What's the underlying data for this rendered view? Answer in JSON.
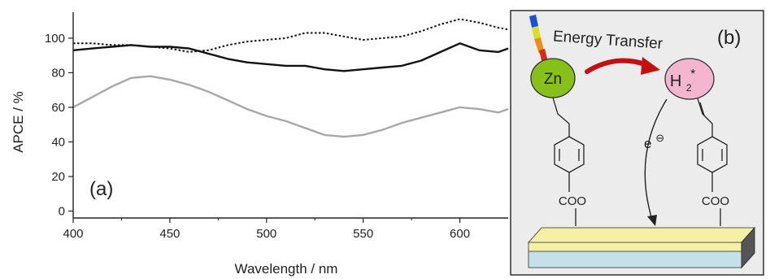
{
  "chart_data": {
    "type": "line",
    "panel_label": "(a)",
    "xlabel": "Wavelength / nm",
    "ylabel": "APCE / %",
    "xlim": [
      400,
      625
    ],
    "ylim": [
      -4,
      115
    ],
    "xticks": [
      400,
      450,
      500,
      550,
      600
    ],
    "yticks": [
      0,
      20,
      40,
      60,
      80,
      100
    ],
    "grid": false,
    "series": [
      {
        "style": "dotted",
        "color": "#111111",
        "x": [
          400,
          410,
          420,
          430,
          440,
          450,
          460,
          470,
          480,
          490,
          500,
          510,
          520,
          530,
          540,
          550,
          560,
          570,
          580,
          590,
          600,
          610,
          620,
          625
        ],
        "y": [
          97,
          97,
          96,
          96,
          95,
          94,
          92,
          93,
          96,
          98,
          99,
          100,
          103,
          103,
          101,
          99,
          100,
          101,
          104,
          108,
          111,
          109,
          106,
          105
        ]
      },
      {
        "style": "solid",
        "color": "#111111",
        "x": [
          400,
          410,
          420,
          430,
          440,
          450,
          460,
          470,
          480,
          490,
          500,
          510,
          520,
          530,
          540,
          550,
          560,
          570,
          580,
          590,
          600,
          610,
          620,
          625
        ],
        "y": [
          93,
          94,
          95,
          96,
          95,
          95,
          94,
          91,
          88,
          86,
          85,
          84,
          84,
          82,
          81,
          82,
          83,
          84,
          87,
          92,
          97,
          93,
          92,
          94
        ]
      },
      {
        "style": "solid",
        "color": "#a8a8a8",
        "x": [
          400,
          410,
          420,
          430,
          440,
          450,
          460,
          470,
          480,
          490,
          500,
          510,
          520,
          530,
          540,
          550,
          560,
          570,
          580,
          590,
          600,
          610,
          620,
          625
        ],
        "y": [
          60,
          66,
          72,
          77,
          78,
          76,
          73,
          69,
          64,
          59,
          55,
          52,
          48,
          44,
          43,
          44,
          47,
          51,
          54,
          57,
          60,
          59,
          57,
          59
        ]
      }
    ]
  },
  "scheme": {
    "panel_label": "(b)",
    "title": "Energy Transfer",
    "donor_label": "Zn",
    "acceptor_label": "H",
    "acceptor_subscript": "2",
    "acceptor_superscript": "*",
    "electron_label": "e",
    "electron_charge": "⊖",
    "anchor_left": "COO",
    "anchor_right": "COO",
    "colors": {
      "donor": "#86c018",
      "acceptor": "#f4b6cf",
      "arrow": "#c41010",
      "electrode_top": "#f5f0a6",
      "electrode_bottom": "#c4e0e8",
      "panel_bg": "#ececec"
    }
  }
}
